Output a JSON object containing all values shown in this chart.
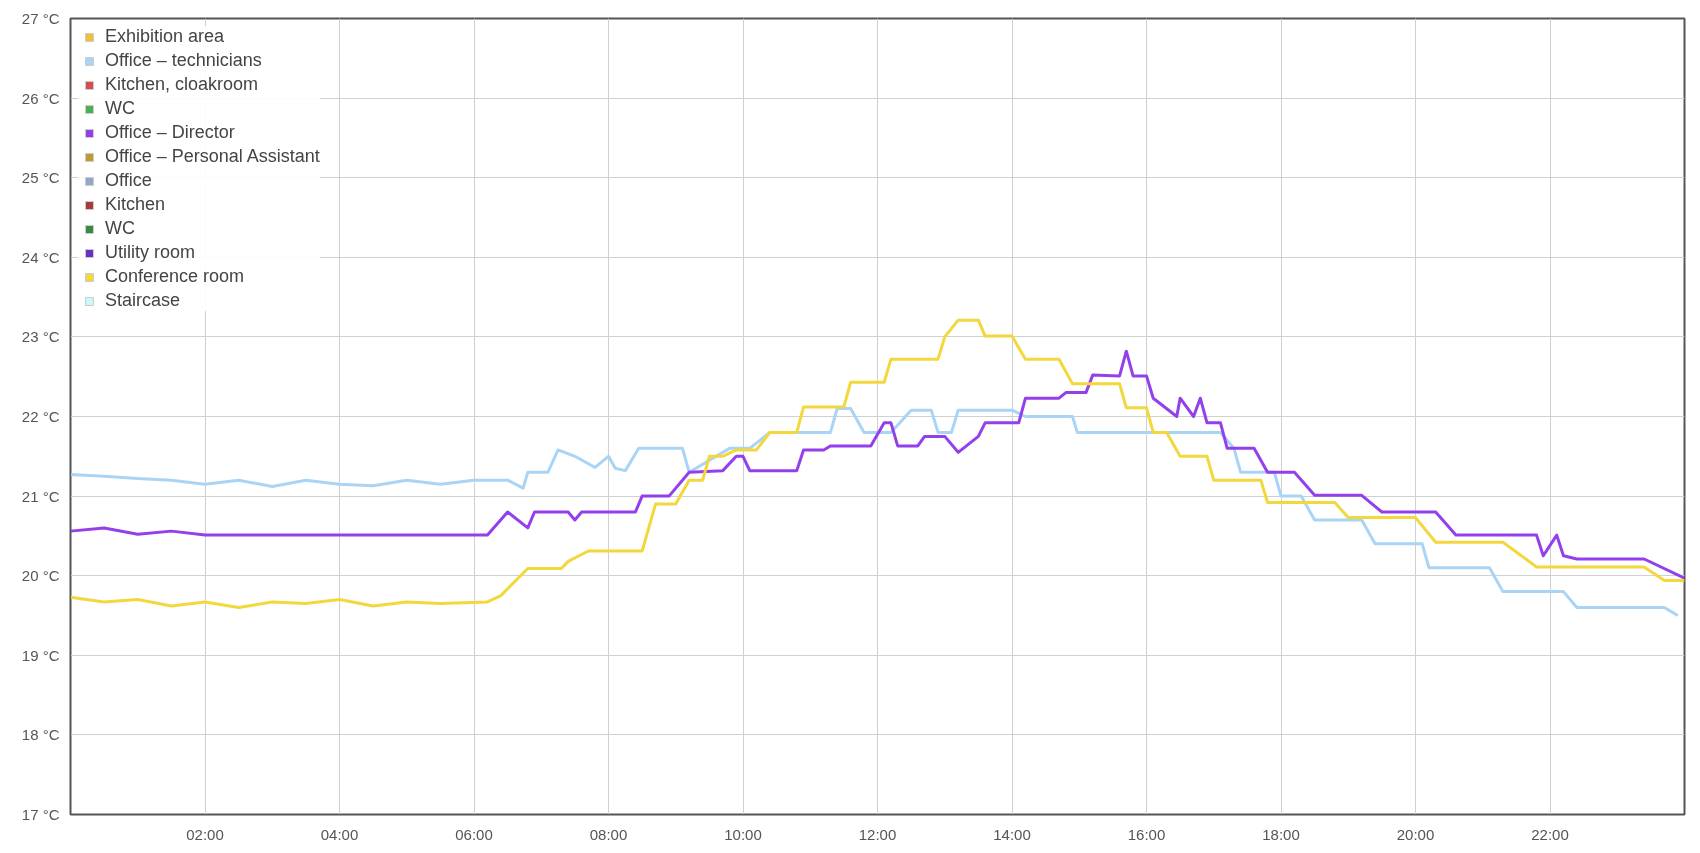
{
  "chart_data": {
    "type": "line",
    "xlim": [
      0,
      24
    ],
    "xticks": [
      {
        "value": 2,
        "label": "02:00"
      },
      {
        "value": 4,
        "label": "04:00"
      },
      {
        "value": 6,
        "label": "06:00"
      },
      {
        "value": 8,
        "label": "08:00"
      },
      {
        "value": 10,
        "label": "10:00"
      },
      {
        "value": 12,
        "label": "12:00"
      },
      {
        "value": 14,
        "label": "14:00"
      },
      {
        "value": 16,
        "label": "16:00"
      },
      {
        "value": 18,
        "label": "18:00"
      },
      {
        "value": 20,
        "label": "20:00"
      },
      {
        "value": 22,
        "label": "22:00"
      }
    ],
    "ylim": [
      17,
      27
    ],
    "yticks": [
      {
        "value": 17,
        "label": "17 °C"
      },
      {
        "value": 18,
        "label": "18 °C"
      },
      {
        "value": 19,
        "label": "19 °C"
      },
      {
        "value": 20,
        "label": "20 °C"
      },
      {
        "value": 21,
        "label": "21 °C"
      },
      {
        "value": 22,
        "label": "22 °C"
      },
      {
        "value": 23,
        "label": "23 °C"
      },
      {
        "value": 24,
        "label": "24 °C"
      },
      {
        "value": 25,
        "label": "25 °C"
      },
      {
        "value": 26,
        "label": "26 °C"
      },
      {
        "value": 27,
        "label": "27 °C"
      }
    ],
    "grid": true,
    "legend": "top left",
    "marker": "none",
    "line_style": "solid",
    "series": [
      {
        "name": "Exhibition area",
        "color": "#efc03a"
      },
      {
        "name": "Office – technicians",
        "color": "#aad4f5",
        "x": [
          0,
          0.5,
          1,
          1.5,
          2,
          2.5,
          3,
          3.5,
          4,
          4.5,
          5,
          5.5,
          6,
          6.5,
          6.73,
          6.8,
          7.1,
          7.25,
          7.5,
          7.8,
          8.0,
          8.1,
          8.25,
          8.45,
          9.1,
          9.2,
          9.3,
          9.8,
          10.1,
          10.4,
          11.3,
          11.4,
          11.6,
          11.8,
          12.2,
          12.5,
          12.8,
          12.9,
          13.1,
          13.2,
          14.0,
          14.2,
          14.9,
          14.97,
          15.5,
          17.1,
          17.3,
          17.4,
          17.9,
          18.0,
          18.3,
          18.5,
          19.2,
          19.4,
          20.1,
          20.2,
          21.1,
          21.3,
          22.2,
          22.4,
          23.7,
          23.9
        ],
        "values": [
          21.27,
          21.25,
          21.22,
          21.2,
          21.15,
          21.2,
          21.12,
          21.2,
          21.15,
          21.13,
          21.2,
          21.15,
          21.2,
          21.2,
          21.1,
          21.3,
          21.3,
          21.58,
          21.5,
          21.36,
          21.5,
          21.35,
          21.32,
          21.6,
          21.6,
          21.3,
          21.35,
          21.6,
          21.6,
          21.8,
          21.8,
          22.1,
          22.1,
          21.8,
          21.8,
          22.08,
          22.08,
          21.8,
          21.8,
          22.08,
          22.08,
          22.0,
          22.0,
          21.8,
          21.8,
          21.8,
          21.6,
          21.3,
          21.3,
          21.0,
          21.0,
          20.7,
          20.7,
          20.4,
          20.4,
          20.1,
          20.1,
          19.8,
          19.8,
          19.6,
          19.6,
          19.5
        ]
      },
      {
        "name": "Kitchen, cloakroom",
        "color": "#d44e4e"
      },
      {
        "name": "WC",
        "color": "#4caf50"
      },
      {
        "name": "Office – Director",
        "color": "#9340ec",
        "x": [
          0,
          0.5,
          1,
          1.5,
          2,
          2.5,
          3,
          3.5,
          4,
          4.5,
          5,
          5.5,
          6.2,
          6.5,
          6.8,
          6.9,
          7.4,
          7.5,
          7.6,
          8.4,
          8.5,
          8.9,
          9.2,
          9.7,
          9.9,
          10.0,
          10.1,
          10.8,
          10.9,
          11.2,
          11.3,
          11.9,
          12.1,
          12.2,
          12.3,
          12.6,
          12.7,
          13.0,
          13.2,
          13.5,
          13.6,
          14.1,
          14.2,
          14.7,
          14.8,
          15.1,
          15.2,
          15.6,
          15.7,
          15.8,
          16.0,
          16.1,
          16.45,
          16.5,
          16.7,
          16.8,
          16.9,
          17.1,
          17.2,
          17.6,
          17.8,
          18.2,
          18.5,
          19.2,
          19.5,
          20.3,
          20.6,
          21.8,
          21.9,
          22.1,
          22.2,
          22.4,
          23.4,
          24.0
        ],
        "values": [
          20.56,
          20.6,
          20.52,
          20.56,
          20.51,
          20.51,
          20.51,
          20.51,
          20.51,
          20.51,
          20.51,
          20.51,
          20.51,
          20.8,
          20.6,
          20.8,
          20.8,
          20.7,
          20.8,
          20.8,
          21.0,
          21.0,
          21.3,
          21.32,
          21.5,
          21.5,
          21.32,
          21.32,
          21.58,
          21.58,
          21.63,
          21.63,
          21.92,
          21.92,
          21.63,
          21.63,
          21.75,
          21.75,
          21.55,
          21.75,
          21.92,
          21.92,
          22.23,
          22.23,
          22.3,
          22.3,
          22.52,
          22.51,
          22.82,
          22.51,
          22.51,
          22.23,
          22.0,
          22.23,
          22.0,
          22.23,
          21.92,
          21.92,
          21.6,
          21.6,
          21.3,
          21.3,
          21.01,
          21.01,
          20.8,
          20.8,
          20.51,
          20.51,
          20.25,
          20.51,
          20.25,
          20.21,
          20.21,
          19.97
        ]
      },
      {
        "name": "Office – Personal Assistant",
        "color": "#bf9a30"
      },
      {
        "name": "Office",
        "color": "#8eaac8"
      },
      {
        "name": "Kitchen",
        "color": "#a83a3a"
      },
      {
        "name": "WC",
        "color": "#3a8a40"
      },
      {
        "name": "Utility room",
        "color": "#6a2fc0"
      },
      {
        "name": "Conference room",
        "color": "#f2d83c",
        "x": [
          0,
          0.5,
          1,
          1.5,
          2,
          2.5,
          3,
          3.5,
          4,
          4.5,
          5,
          5.5,
          6.2,
          6.4,
          6.8,
          7.3,
          7.4,
          7.7,
          8.5,
          8.7,
          9.0,
          9.2,
          9.4,
          9.5,
          9.7,
          9.9,
          10.2,
          10.4,
          10.8,
          10.9,
          11.5,
          11.6,
          12.1,
          12.2,
          12.9,
          13.0,
          13.2,
          13.5,
          13.6,
          14.0,
          14.2,
          14.7,
          14.9,
          15.6,
          15.7,
          16.0,
          16.1,
          16.3,
          16.5,
          16.9,
          17.0,
          17.7,
          17.8,
          18.8,
          19.0,
          20.0,
          20.3,
          21.3,
          21.8,
          23.4,
          23.7,
          24.0
        ],
        "values": [
          19.73,
          19.67,
          19.7,
          19.62,
          19.67,
          19.6,
          19.67,
          19.65,
          19.7,
          19.62,
          19.67,
          19.65,
          19.67,
          19.75,
          20.09,
          20.09,
          20.18,
          20.31,
          20.31,
          20.9,
          20.9,
          21.2,
          21.2,
          21.5,
          21.5,
          21.58,
          21.58,
          21.8,
          21.8,
          22.12,
          22.12,
          22.43,
          22.43,
          22.72,
          22.72,
          23.0,
          23.21,
          23.21,
          23.01,
          23.01,
          22.72,
          22.72,
          22.41,
          22.41,
          22.11,
          22.11,
          21.8,
          21.8,
          21.5,
          21.5,
          21.2,
          21.2,
          20.92,
          20.92,
          20.73,
          20.73,
          20.42,
          20.42,
          20.11,
          20.11,
          19.94,
          19.94
        ]
      },
      {
        "name": "Staircase",
        "color": "#ccf8fa"
      }
    ]
  }
}
